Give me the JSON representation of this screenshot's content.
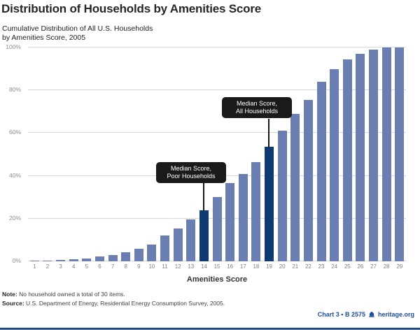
{
  "title": "Distribution of Households by Amenities Score",
  "subtitle": {
    "line1": "Cumulative Distribution of All U.S. Households",
    "line2": "by Amenities Score, 2005"
  },
  "chart_data": {
    "type": "bar",
    "title": "Cumulative Distribution of All U.S. Households by Amenities Score, 2005",
    "categories": [
      "1",
      "2",
      "3",
      "4",
      "5",
      "6",
      "7",
      "8",
      "9",
      "10",
      "11",
      "12",
      "13",
      "14",
      "15",
      "16",
      "17",
      "18",
      "19",
      "20",
      "21",
      "22",
      "23",
      "24",
      "25",
      "26",
      "27",
      "28",
      "29"
    ],
    "values": [
      0.2,
      0.4,
      0.6,
      0.9,
      1.3,
      2.2,
      3,
      4.3,
      6,
      8,
      12,
      15.5,
      19.5,
      24,
      30,
      36.5,
      41,
      46.5,
      53.5,
      61,
      69,
      75.5,
      84,
      90,
      94.5,
      97,
      99,
      100,
      100
    ],
    "xlabel": "Amenities Score",
    "ylabel": "",
    "ylim": [
      0,
      100
    ],
    "yticks": [
      "0%",
      "20%",
      "40%",
      "60%",
      "80%",
      "100%"
    ],
    "grid": true,
    "legend": "none",
    "bar_color": "#6b7eb1",
    "highlight_color": "#0e3a71",
    "gridline_color": "#d8d8d8",
    "highlighted_categories": [
      "14",
      "19"
    ],
    "annotations": [
      {
        "line1": "Median Score,",
        "line2": "Poor Households",
        "target": "14"
      },
      {
        "line1": "Median Score,",
        "line2": "All Households",
        "target": "19"
      }
    ]
  },
  "note": {
    "label": "Note:",
    "text": " No household owned a total of 30 items."
  },
  "source": {
    "label": "Source:",
    "text": " U.S. Department of Energy, Residential Energy Consumption Survey, 2005."
  },
  "footer": {
    "chart_ref": "Chart 3 • B 2575",
    "site": "heritage.org",
    "accent_color": "#1b4e9b",
    "rule_color": "#1b4a8a"
  }
}
